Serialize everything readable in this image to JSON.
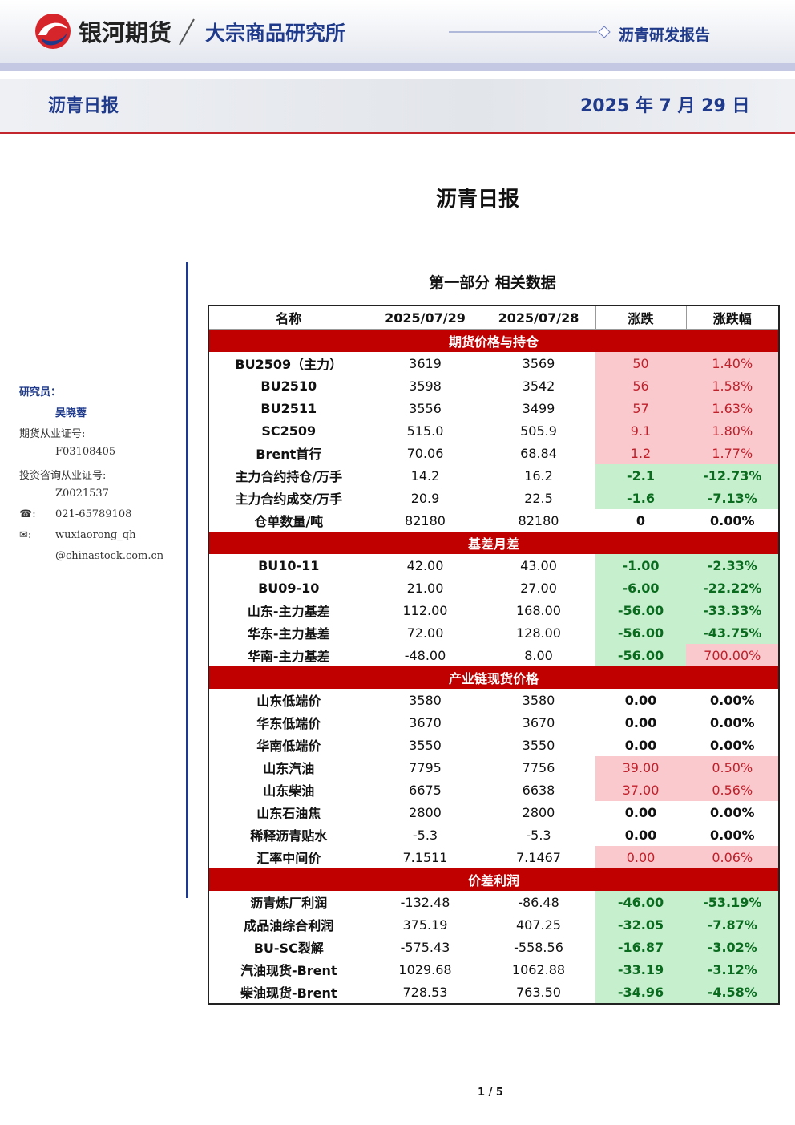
{
  "header": {
    "brand": "银河期货",
    "division": "大宗商品研究所",
    "report_type": "沥青研发报告",
    "report_name": "沥青日报",
    "date": "2025 年 7 月 29 日"
  },
  "title": "沥青日报",
  "sidebar": {
    "researcher_label": "研究员：",
    "researcher": "吴晓蓉",
    "futures_cert_label": "期货从业证号:",
    "futures_cert": "F03108405",
    "consult_cert_label": "投资咨询从业证号:",
    "consult_cert": "Z0021537",
    "phone_label": "☎:",
    "phone": "021-65789108",
    "email_label": "✉:",
    "email_1": "wuxiaorong_qh",
    "email_2": "@chinastock.com.cn"
  },
  "section_title": "第一部分 相关数据",
  "table": {
    "columns": [
      "名称",
      "2025/07/29",
      "2025/07/28",
      "涨跌",
      "涨跌幅"
    ],
    "groups": [
      {
        "name": "期货价格与持仓",
        "rows": [
          {
            "cells": [
              "BU2509（主力）",
              "3619",
              "3569",
              "50",
              "1.40%"
            ],
            "change_tone": "up",
            "pct_tone": "up"
          },
          {
            "cells": [
              "BU2510",
              "3598",
              "3542",
              "56",
              "1.58%"
            ],
            "change_tone": "up",
            "pct_tone": "up"
          },
          {
            "cells": [
              "BU2511",
              "3556",
              "3499",
              "57",
              "1.63%"
            ],
            "change_tone": "up",
            "pct_tone": "up"
          },
          {
            "cells": [
              "SC2509",
              "515.0",
              "505.9",
              "9.1",
              "1.80%"
            ],
            "change_tone": "up",
            "pct_tone": "up"
          },
          {
            "cells": [
              "Brent首行",
              "70.06",
              "68.84",
              "1.2",
              "1.77%"
            ],
            "change_tone": "up",
            "pct_tone": "up"
          },
          {
            "cells": [
              "主力合约持仓/万手",
              "14.2",
              "16.2",
              "-2.1",
              "-12.73%"
            ],
            "change_tone": "down",
            "pct_tone": "down"
          },
          {
            "cells": [
              "主力合约成交/万手",
              "20.9",
              "22.5",
              "-1.6",
              "-7.13%"
            ],
            "change_tone": "down",
            "pct_tone": "down"
          },
          {
            "cells": [
              "仓单数量/吨",
              "82180",
              "82180",
              "0",
              "0.00%"
            ]
          }
        ]
      },
      {
        "name": "基差月差",
        "rows": [
          {
            "cells": [
              "BU10-11",
              "42.00",
              "43.00",
              "-1.00",
              "-2.33%"
            ],
            "change_tone": "down",
            "pct_tone": "down"
          },
          {
            "cells": [
              "BU09-10",
              "21.00",
              "27.00",
              "-6.00",
              "-22.22%"
            ],
            "change_tone": "down",
            "pct_tone": "down"
          },
          {
            "cells": [
              "山东-主力基差",
              "112.00",
              "168.00",
              "-56.00",
              "-33.33%"
            ],
            "change_tone": "down",
            "pct_tone": "down"
          },
          {
            "cells": [
              "华东-主力基差",
              "72.00",
              "128.00",
              "-56.00",
              "-43.75%"
            ],
            "change_tone": "down",
            "pct_tone": "down"
          },
          {
            "cells": [
              "华南-主力基差",
              "-48.00",
              "8.00",
              "-56.00",
              "700.00%"
            ],
            "change_tone": "down",
            "pct_tone": "up"
          }
        ]
      },
      {
        "name": "产业链现货价格",
        "rows": [
          {
            "cells": [
              "山东低端价",
              "3580",
              "3580",
              "0.00",
              "0.00%"
            ]
          },
          {
            "cells": [
              "华东低端价",
              "3670",
              "3670",
              "0.00",
              "0.00%"
            ]
          },
          {
            "cells": [
              "华南低端价",
              "3550",
              "3550",
              "0.00",
              "0.00%"
            ]
          },
          {
            "cells": [
              "山东汽油",
              "7795",
              "7756",
              "39.00",
              "0.50%"
            ],
            "change_tone": "up",
            "pct_tone": "up"
          },
          {
            "cells": [
              "山东柴油",
              "6675",
              "6638",
              "37.00",
              "0.56%"
            ],
            "change_tone": "up",
            "pct_tone": "up"
          },
          {
            "cells": [
              "山东石油焦",
              "2800",
              "2800",
              "0.00",
              "0.00%"
            ]
          },
          {
            "cells": [
              "稀释沥青贴水",
              "-5.3",
              "-5.3",
              "0.00",
              "0.00%"
            ]
          },
          {
            "cells": [
              "汇率中间价",
              "7.1511",
              "7.1467",
              "0.00",
              "0.06%"
            ],
            "change_tone": "up",
            "pct_tone": "up"
          }
        ]
      },
      {
        "name": "价差利润",
        "rows": [
          {
            "cells": [
              "沥青炼厂利润",
              "-132.48",
              "-86.48",
              "-46.00",
              "-53.19%"
            ],
            "change_tone": "down",
            "pct_tone": "down"
          },
          {
            "cells": [
              "成品油综合利润",
              "375.19",
              "407.25",
              "-32.05",
              "-7.87%"
            ],
            "change_tone": "down",
            "pct_tone": "down"
          },
          {
            "cells": [
              "BU-SC裂解",
              "-575.43",
              "-558.56",
              "-16.87",
              "-3.02%"
            ],
            "change_tone": "down",
            "pct_tone": "down"
          },
          {
            "cells": [
              "汽油现货-Brent",
              "1029.68",
              "1062.88",
              "-33.19",
              "-3.12%"
            ],
            "change_tone": "down",
            "pct_tone": "down"
          },
          {
            "cells": [
              "柴油现货-Brent",
              "728.53",
              "763.50",
              "-34.96",
              "-4.58%"
            ],
            "change_tone": "down",
            "pct_tone": "down"
          }
        ]
      }
    ]
  },
  "page_number": "1 / 5"
}
